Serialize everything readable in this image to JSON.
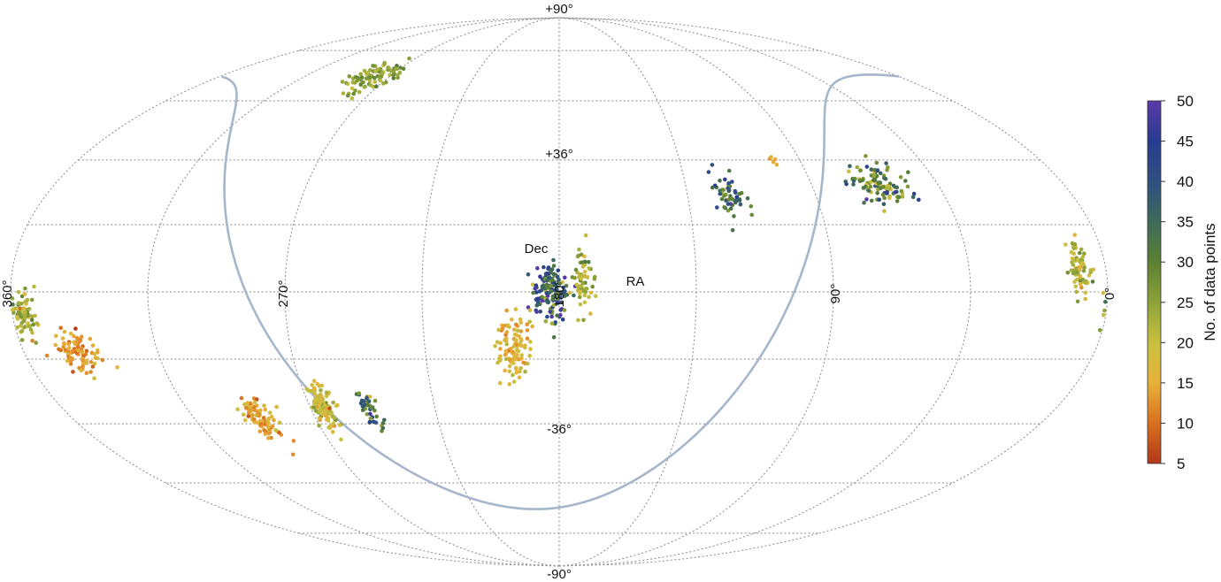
{
  "chart_data": {
    "type": "scatter",
    "projection": "mollweide",
    "x_direction": "RA increases to the left (0° at right edge, 360° at left edge)",
    "grid": true,
    "axis_labels": {
      "dec": "Dec",
      "ra": "RA"
    },
    "dec_tick_labels": [
      "+90°",
      "+36°",
      "-36°",
      "-90°"
    ],
    "dec_ticks": [
      90,
      36,
      -36,
      -90
    ],
    "ra_tick_labels": [
      "360°",
      "270°",
      "180°",
      "90°",
      "0°"
    ],
    "ra_ticks": [
      360,
      270,
      180,
      90,
      0
    ],
    "galactic_plane_color": "#a6b6cb",
    "colorbar": {
      "label": "No. of data points",
      "min": 5,
      "max": 50,
      "ticks": [
        5,
        10,
        15,
        20,
        25,
        30,
        35,
        40,
        45,
        50
      ],
      "tick_labels": [
        "5",
        "10",
        "15",
        "20",
        "25",
        "30",
        "35",
        "40",
        "45",
        "50"
      ],
      "colors": [
        "#b2381a",
        "#d9701f",
        "#e8b13a",
        "#c9c040",
        "#8da33a",
        "#5c8033",
        "#3d6b5a",
        "#2f4f82",
        "#263d8f",
        "#5b3aa8"
      ]
    },
    "clusters": [
      {
        "ra": 278,
        "dec": 62,
        "n": 90,
        "spread_ra": 12,
        "spread_dec": 5,
        "value_mean": 25,
        "value_sd": 3
      },
      {
        "ra": 357,
        "dec": -6,
        "n": 80,
        "spread_ra": 4,
        "spread_dec": 6,
        "value_mean": 23,
        "value_sd": 4
      },
      {
        "ra": 342,
        "dec": -16,
        "n": 90,
        "spread_ra": 6,
        "spread_dec": 5,
        "value_mean": 13,
        "value_sd": 3
      },
      {
        "ra": 290,
        "dec": -34,
        "n": 90,
        "spread_ra": 5,
        "spread_dec": 5,
        "value_mean": 15,
        "value_sd": 3
      },
      {
        "ra": 265,
        "dec": -31,
        "n": 110,
        "spread_ra": 4,
        "spread_dec": 6,
        "value_mean": 19,
        "value_sd": 4
      },
      {
        "ra": 249,
        "dec": -31,
        "n": 40,
        "spread_ra": 3,
        "spread_dec": 6,
        "value_mean": 33,
        "value_sd": 6
      },
      {
        "ra": 195,
        "dec": -15,
        "n": 110,
        "spread_ra": 5,
        "spread_dec": 8,
        "value_mean": 16,
        "value_sd": 3
      },
      {
        "ra": 183,
        "dec": 0,
        "n": 150,
        "spread_ra": 5,
        "spread_dec": 7,
        "value_mean": 38,
        "value_sd": 7
      },
      {
        "ra": 172,
        "dec": 3,
        "n": 60,
        "spread_ra": 3,
        "spread_dec": 8,
        "value_mean": 22,
        "value_sd": 4
      },
      {
        "ra": 121,
        "dec": 25,
        "n": 55,
        "spread_ra": 5,
        "spread_dec": 6,
        "value_mean": 33,
        "value_sd": 7
      },
      {
        "ra": 100,
        "dec": 37,
        "n": 5,
        "spread_ra": 3,
        "spread_dec": 2,
        "value_mean": 14,
        "value_sd": 3
      },
      {
        "ra": 66,
        "dec": 29,
        "n": 110,
        "spread_ra": 8,
        "spread_dec": 5,
        "value_mean": 30,
        "value_sd": 8
      },
      {
        "ra": 8,
        "dec": 6,
        "n": 75,
        "spread_ra": 3,
        "spread_dec": 6,
        "value_mean": 20,
        "value_sd": 4
      }
    ]
  }
}
